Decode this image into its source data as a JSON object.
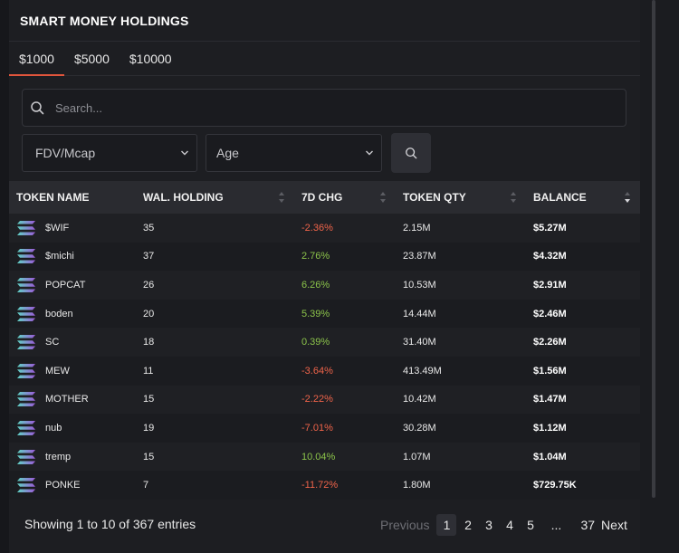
{
  "header": {
    "title": "SMART MONEY HOLDINGS"
  },
  "tabs": [
    {
      "label": "$1000",
      "active": true
    },
    {
      "label": "$5000",
      "active": false
    },
    {
      "label": "$10000",
      "active": false
    }
  ],
  "search": {
    "placeholder": "Search...",
    "value": ""
  },
  "filters": {
    "fdv_label": "FDV/Mcap",
    "age_label": "Age"
  },
  "table": {
    "columns": [
      "TOKEN NAME",
      "WAL. HOLDING",
      "7D CHG",
      "TOKEN QTY",
      "BALANCE"
    ],
    "rows": [
      {
        "token": "$WIF",
        "holding": "35",
        "chg": "-2.36%",
        "qty": "2.15M",
        "balance": "$5.27M",
        "trend": "neg"
      },
      {
        "token": "$michi",
        "holding": "37",
        "chg": "2.76%",
        "qty": "23.87M",
        "balance": "$4.32M",
        "trend": "pos"
      },
      {
        "token": "POPCAT",
        "holding": "26",
        "chg": "6.26%",
        "qty": "10.53M",
        "balance": "$2.91M",
        "trend": "pos"
      },
      {
        "token": "boden",
        "holding": "20",
        "chg": "5.39%",
        "qty": "14.44M",
        "balance": "$2.46M",
        "trend": "pos"
      },
      {
        "token": "SC",
        "holding": "18",
        "chg": "0.39%",
        "qty": "31.40M",
        "balance": "$2.26M",
        "trend": "pos"
      },
      {
        "token": "MEW",
        "holding": "11",
        "chg": "-3.64%",
        "qty": "413.49M",
        "balance": "$1.56M",
        "trend": "neg"
      },
      {
        "token": "MOTHER",
        "holding": "15",
        "chg": "-2.22%",
        "qty": "10.42M",
        "balance": "$1.47M",
        "trend": "neg"
      },
      {
        "token": "nub",
        "holding": "19",
        "chg": "-7.01%",
        "qty": "30.28M",
        "balance": "$1.12M",
        "trend": "neg"
      },
      {
        "token": "tremp",
        "holding": "15",
        "chg": "10.04%",
        "qty": "1.07M",
        "balance": "$1.04M",
        "trend": "pos"
      },
      {
        "token": "PONKE",
        "holding": "7",
        "chg": "-11.72%",
        "qty": "1.80M",
        "balance": "$729.75K",
        "trend": "neg"
      }
    ]
  },
  "footer": {
    "entries": "Showing 1 to 10 of 367 entries",
    "previous": "Previous",
    "pages": [
      "1",
      "2",
      "3",
      "4",
      "5"
    ],
    "ellipsis": "...",
    "last_page": "37",
    "next": "Next"
  },
  "colors": {
    "accent": "#e0553c",
    "negative": "#f0644a",
    "positive": "#8bc34a"
  }
}
